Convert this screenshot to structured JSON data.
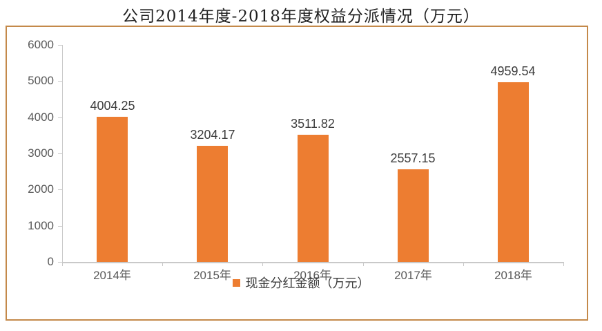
{
  "title": "公司2014年度-2018年度权益分派情况（万元）",
  "legend": {
    "label": "现金分红金额（万元）"
  },
  "colors": {
    "bar": "#ED7D31",
    "frame": "#C4894A",
    "axis": "#C9C9C9",
    "tick_text": "#595959",
    "data_label": "#3d3d3d"
  },
  "chart_data": {
    "type": "bar",
    "title": "公司2014年度-2018年度权益分派情况（万元）",
    "categories": [
      "2014年",
      "2015年",
      "2016年",
      "2017年",
      "2018年"
    ],
    "series": [
      {
        "name": "现金分红金额（万元）",
        "values": [
          4004.25,
          3204.17,
          3511.82,
          2557.15,
          4959.54
        ]
      }
    ],
    "data_labels": [
      "4004.25",
      "3204.17",
      "3511.82",
      "2557.15",
      "4959.54"
    ],
    "xlabel": "",
    "ylabel": "",
    "ylim": [
      0,
      6000
    ],
    "ytick_step": 1000,
    "grid": false,
    "legend_position": "bottom"
  }
}
